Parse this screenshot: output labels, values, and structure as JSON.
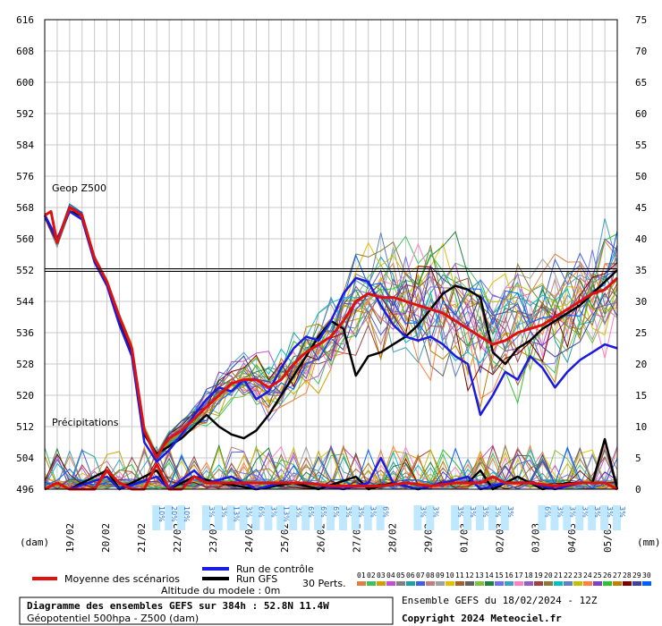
{
  "chart_data": {
    "type": "line",
    "y_left": {
      "min": 496,
      "max": 616,
      "ticks": [
        "496",
        "504",
        "512",
        "520",
        "528",
        "536",
        "544",
        "552",
        "560",
        "568",
        "576",
        "584",
        "592",
        "600",
        "608",
        "616"
      ]
    },
    "y_right": {
      "min": 0,
      "max": 75,
      "ticks": [
        "0",
        "5",
        "10",
        "15",
        "20",
        "25",
        "30",
        "35",
        "40",
        "45",
        "50",
        "55",
        "60",
        "65",
        "70",
        "75"
      ]
    },
    "y_left_unit": "(dam)",
    "y_right_unit": "(mm)",
    "x_dates": [
      "19/02",
      "20/02",
      "21/02",
      "22/02",
      "23/02",
      "24/02",
      "25/02",
      "26/02",
      "27/02",
      "28/02",
      "29/02",
      "01/03",
      "02/03",
      "03/03",
      "04/03",
      "05/03"
    ],
    "x_range_days": [
      0,
      16
    ],
    "reference_level": 552,
    "label_geop": "Geop Z500",
    "label_precip": "Précipitations",
    "snow_text": [
      "10%",
      "20%",
      "10%",
      "3%",
      "3%",
      "13%",
      "3%",
      "6%",
      "3%",
      "13%",
      "3%",
      "6%",
      "6%",
      "6%",
      "3%",
      "3%",
      "3%",
      "6%",
      "3%",
      "3%",
      "3%",
      "3%",
      "3%",
      "3%",
      "3%",
      "6%",
      "3%",
      "3%",
      "3%",
      "3%",
      "3%",
      "3%",
      "6%",
      "3%",
      "6%",
      "10%",
      "3%",
      "3%",
      "3%",
      "3%",
      "3%",
      "6%",
      "3%",
      "3%",
      "3%",
      "3%"
    ],
    "series": [
      {
        "name": "Moyenne des scénarios",
        "color": "#e01010",
        "z500_points": [
          [
            0,
            566
          ],
          [
            0.5,
            567
          ],
          [
            1,
            559
          ],
          [
            2,
            568
          ],
          [
            3,
            566
          ],
          [
            4,
            555
          ],
          [
            5,
            549
          ],
          [
            6,
            540
          ],
          [
            7,
            532
          ],
          [
            8,
            511
          ],
          [
            9,
            504
          ],
          [
            9.5,
            507
          ],
          [
            10,
            509
          ],
          [
            11,
            511
          ],
          [
            12,
            514
          ],
          [
            13,
            517
          ],
          [
            14,
            520
          ],
          [
            15,
            523
          ],
          [
            16,
            524
          ],
          [
            17,
            524
          ],
          [
            18,
            522
          ],
          [
            19,
            524
          ],
          [
            20,
            528
          ],
          [
            21,
            531
          ],
          [
            22,
            533
          ],
          [
            23,
            535
          ],
          [
            24,
            539
          ],
          [
            25,
            544
          ],
          [
            26,
            546
          ],
          [
            27,
            545
          ],
          [
            28,
            545
          ],
          [
            29,
            544
          ],
          [
            30,
            543
          ],
          [
            31,
            542
          ],
          [
            32,
            541
          ],
          [
            33,
            539
          ],
          [
            34,
            537
          ],
          [
            35,
            535
          ],
          [
            36,
            533
          ],
          [
            37,
            534
          ],
          [
            38,
            536
          ],
          [
            39,
            537
          ],
          [
            40,
            538
          ],
          [
            41,
            540
          ],
          [
            42,
            542
          ],
          [
            43,
            544
          ],
          [
            44,
            546
          ],
          [
            45,
            547
          ],
          [
            46,
            550
          ]
        ],
        "precip_points": [
          [
            0,
            0
          ],
          [
            1,
            1
          ],
          [
            2,
            0
          ],
          [
            4,
            0
          ],
          [
            5,
            3
          ],
          [
            6,
            1
          ],
          [
            7,
            0
          ],
          [
            8,
            0
          ],
          [
            9,
            4
          ],
          [
            10,
            0
          ],
          [
            11,
            0
          ],
          [
            12,
            2
          ],
          [
            13,
            1
          ],
          [
            14,
            1
          ],
          [
            15,
            1
          ],
          [
            17,
            1
          ],
          [
            19,
            1
          ],
          [
            21,
            1
          ],
          [
            23,
            0.5
          ],
          [
            25,
            0.5
          ],
          [
            27,
            0.5
          ],
          [
            29,
            1
          ],
          [
            31,
            0.5
          ],
          [
            33,
            1
          ],
          [
            35,
            1
          ],
          [
            36,
            2
          ],
          [
            37,
            1
          ],
          [
            39,
            1
          ],
          [
            41,
            0.5
          ],
          [
            43,
            1
          ],
          [
            45,
            1
          ],
          [
            46,
            0
          ]
        ]
      },
      {
        "name": "Run de contrôle",
        "color": "#1a1ae0",
        "z500_points": [
          [
            0,
            566
          ],
          [
            1,
            560
          ],
          [
            2,
            567
          ],
          [
            3,
            565
          ],
          [
            4,
            554
          ],
          [
            5,
            548
          ],
          [
            6,
            538
          ],
          [
            7,
            530
          ],
          [
            8,
            508
          ],
          [
            9,
            503
          ],
          [
            10,
            506
          ],
          [
            11,
            510
          ],
          [
            12,
            515
          ],
          [
            13,
            519
          ],
          [
            14,
            522
          ],
          [
            15,
            521
          ],
          [
            16,
            524
          ],
          [
            17,
            519
          ],
          [
            18,
            521
          ],
          [
            19,
            527
          ],
          [
            20,
            532
          ],
          [
            21,
            535
          ],
          [
            22,
            534
          ],
          [
            23,
            539
          ],
          [
            24,
            546
          ],
          [
            25,
            550
          ],
          [
            26,
            549
          ],
          [
            27,
            543
          ],
          [
            28,
            538
          ],
          [
            29,
            535
          ],
          [
            30,
            534
          ],
          [
            31,
            535
          ],
          [
            32,
            533
          ],
          [
            33,
            530
          ],
          [
            34,
            528
          ],
          [
            35,
            515
          ],
          [
            36,
            520
          ],
          [
            37,
            526
          ],
          [
            38,
            524
          ],
          [
            39,
            530
          ],
          [
            40,
            527
          ],
          [
            41,
            522
          ],
          [
            42,
            526
          ],
          [
            43,
            529
          ],
          [
            44,
            531
          ],
          [
            45,
            533
          ],
          [
            46,
            532
          ]
        ],
        "precip_points": [
          [
            0,
            0
          ],
          [
            1,
            1
          ],
          [
            2,
            0
          ],
          [
            5,
            2
          ],
          [
            6,
            0
          ],
          [
            9,
            2
          ],
          [
            10,
            0
          ],
          [
            12,
            3
          ],
          [
            13,
            1
          ],
          [
            15,
            2
          ],
          [
            17,
            0
          ],
          [
            19,
            1
          ],
          [
            21,
            1
          ],
          [
            24,
            0
          ],
          [
            26,
            1
          ],
          [
            27,
            5
          ],
          [
            28,
            1
          ],
          [
            30,
            0
          ],
          [
            32,
            1
          ],
          [
            34,
            2
          ],
          [
            35,
            0
          ],
          [
            37,
            1
          ],
          [
            39,
            1
          ],
          [
            41,
            0
          ],
          [
            43,
            1
          ],
          [
            45,
            1
          ],
          [
            46,
            0
          ]
        ]
      },
      {
        "name": "Run GFS",
        "color": "#000000",
        "z500_points": [
          [
            0,
            566
          ],
          [
            1,
            560
          ],
          [
            2,
            567
          ],
          [
            3,
            566
          ],
          [
            4,
            555
          ],
          [
            5,
            549
          ],
          [
            6,
            539
          ],
          [
            7,
            531
          ],
          [
            8,
            510
          ],
          [
            9,
            505
          ],
          [
            10,
            507
          ],
          [
            11,
            509
          ],
          [
            12,
            512
          ],
          [
            13,
            515
          ],
          [
            14,
            512
          ],
          [
            15,
            510
          ],
          [
            16,
            509
          ],
          [
            17,
            511
          ],
          [
            18,
            515
          ],
          [
            19,
            520
          ],
          [
            20,
            525
          ],
          [
            21,
            530
          ],
          [
            22,
            535
          ],
          [
            23,
            539
          ],
          [
            24,
            537
          ],
          [
            25,
            525
          ],
          [
            26,
            530
          ],
          [
            27,
            531
          ],
          [
            28,
            533
          ],
          [
            29,
            535
          ],
          [
            30,
            538
          ],
          [
            31,
            542
          ],
          [
            32,
            546
          ],
          [
            33,
            548
          ],
          [
            34,
            547
          ],
          [
            35,
            545
          ],
          [
            36,
            531
          ],
          [
            37,
            528
          ],
          [
            38,
            532
          ],
          [
            39,
            534
          ],
          [
            40,
            537
          ],
          [
            41,
            539
          ],
          [
            42,
            541
          ],
          [
            43,
            543
          ],
          [
            44,
            546
          ],
          [
            45,
            549
          ],
          [
            46,
            552
          ]
        ],
        "precip_points": [
          [
            0,
            0
          ],
          [
            1,
            1
          ],
          [
            2,
            0
          ],
          [
            5,
            3
          ],
          [
            6,
            0
          ],
          [
            9,
            3
          ],
          [
            10,
            0
          ],
          [
            12,
            2
          ],
          [
            14,
            1
          ],
          [
            17,
            0
          ],
          [
            20,
            1
          ],
          [
            22,
            0
          ],
          [
            25,
            2
          ],
          [
            26,
            0
          ],
          [
            28,
            1
          ],
          [
            30,
            0
          ],
          [
            32,
            1
          ],
          [
            34,
            1
          ],
          [
            35,
            3
          ],
          [
            36,
            0
          ],
          [
            38,
            2
          ],
          [
            40,
            0
          ],
          [
            42,
            1
          ],
          [
            44,
            1
          ],
          [
            45,
            8
          ],
          [
            46,
            0
          ]
        ]
      }
    ],
    "perturbations_label": "30 Perts.",
    "perturbation_ids": [
      "01",
      "02",
      "03",
      "04",
      "05",
      "06",
      "07",
      "08",
      "09",
      "10",
      "11",
      "12",
      "13",
      "14",
      "15",
      "16",
      "17",
      "18",
      "19",
      "20",
      "21",
      "22",
      "23",
      "24",
      "25",
      "26",
      "27",
      "28",
      "29",
      "30"
    ],
    "perturbation_colors": [
      "#e08040",
      "#40c060",
      "#d0a000",
      "#c050d0",
      "#808080",
      "#20a0a0",
      "#4060e0",
      "#c08080",
      "#a0a0a0",
      "#e0c000",
      "#a06030",
      "#606060",
      "#80c040",
      "#208040",
      "#7070f0",
      "#40a0c0",
      "#ff80c0",
      "#9060c0",
      "#a04040",
      "#8a7a3a",
      "#00c0c0",
      "#6080c0",
      "#c0c000",
      "#ff8040",
      "#8040c0",
      "#30c030",
      "#c08000",
      "#800000",
      "#4040a0",
      "#0060ff"
    ]
  },
  "legend": {
    "moyenne": "Moyenne des scénarios",
    "controle": "Run de contrôle",
    "gfs": "Run GFS",
    "altitude": "Altitude du modele : 0m",
    "perts": "30 Perts."
  },
  "footer": {
    "title_line1": "Diagramme des ensembles GEFS sur 384h : 52.8N 11.4W",
    "title_line2": "Géopotentiel 500hpa - Z500 (dam)",
    "run_info": "Ensemble GEFS du 18/02/2024 - 12Z",
    "copyright": "Copyright 2024 Meteociel.fr"
  }
}
